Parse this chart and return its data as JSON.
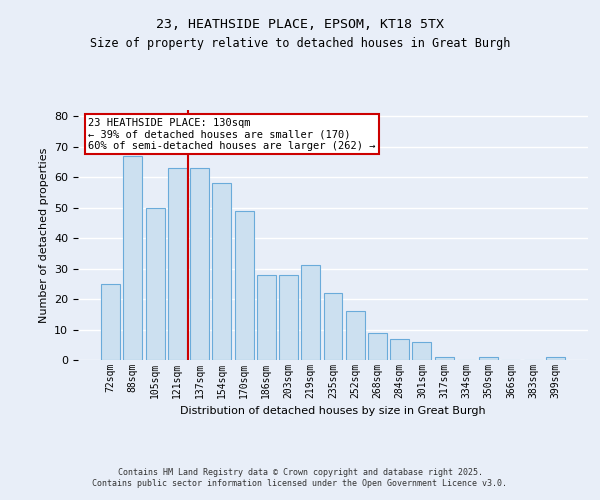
{
  "title1": "23, HEATHSIDE PLACE, EPSOM, KT18 5TX",
  "title2": "Size of property relative to detached houses in Great Burgh",
  "xlabel": "Distribution of detached houses by size in Great Burgh",
  "ylabel": "Number of detached properties",
  "categories": [
    "72sqm",
    "88sqm",
    "105sqm",
    "121sqm",
    "137sqm",
    "154sqm",
    "170sqm",
    "186sqm",
    "203sqm",
    "219sqm",
    "235sqm",
    "252sqm",
    "268sqm",
    "284sqm",
    "301sqm",
    "317sqm",
    "334sqm",
    "350sqm",
    "366sqm",
    "383sqm",
    "399sqm"
  ],
  "values": [
    25,
    67,
    50,
    63,
    63,
    58,
    49,
    28,
    28,
    31,
    22,
    16,
    9,
    7,
    6,
    1,
    0,
    1,
    0,
    0,
    1
  ],
  "bar_color": "#cce0f0",
  "bar_edge_color": "#6aabda",
  "vline_color": "#cc0000",
  "annotation_text": "23 HEATHSIDE PLACE: 130sqm\n← 39% of detached houses are smaller (170)\n60% of semi-detached houses are larger (262) →",
  "annotation_box_color": "#ffffff",
  "annotation_box_edge": "#cc0000",
  "ylim": [
    0,
    82
  ],
  "yticks": [
    0,
    10,
    20,
    30,
    40,
    50,
    60,
    70,
    80
  ],
  "background_color": "#e8eef8",
  "grid_color": "#ffffff",
  "footer": "Contains HM Land Registry data © Crown copyright and database right 2025.\nContains public sector information licensed under the Open Government Licence v3.0."
}
